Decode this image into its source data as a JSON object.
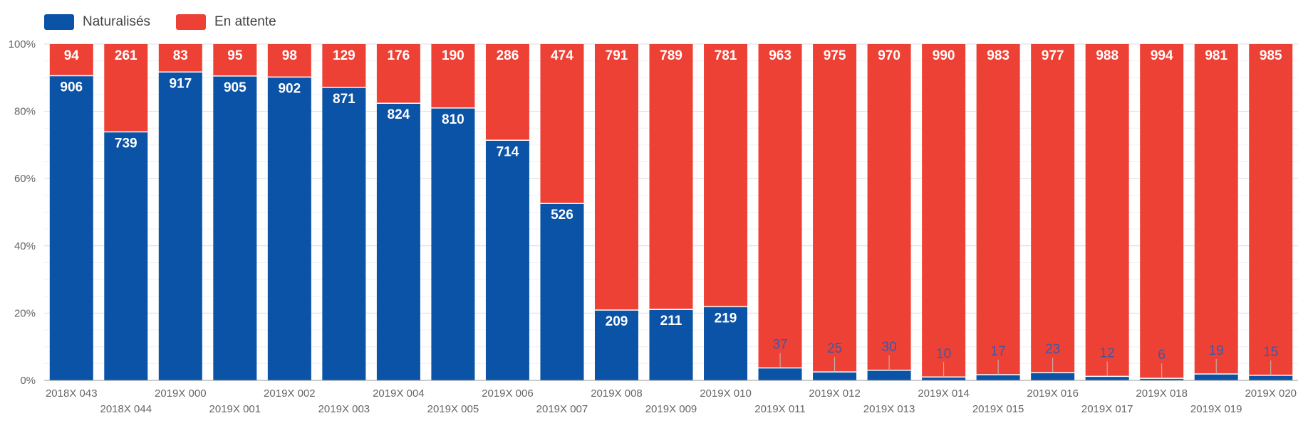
{
  "chart_data": {
    "type": "bar",
    "stacked": true,
    "normalized": true,
    "categories": [
      "2018X 043",
      "2018X 044",
      "2019X 000",
      "2019X 001",
      "2019X 002",
      "2019X 003",
      "2019X 004",
      "2019X 005",
      "2019X 006",
      "2019X 007",
      "2019X 008",
      "2019X 009",
      "2019X 010",
      "2019X 011",
      "2019X 012",
      "2019X 013",
      "2019X 014",
      "2019X 015",
      "2019X 016",
      "2019X 017",
      "2019X 018",
      "2019X 019",
      "2019X 020"
    ],
    "series": [
      {
        "name": "Naturalisés",
        "color": "#0a53a6",
        "values": [
          906,
          739,
          917,
          905,
          902,
          871,
          824,
          810,
          714,
          526,
          209,
          211,
          219,
          37,
          25,
          30,
          10,
          17,
          23,
          12,
          6,
          19,
          15
        ]
      },
      {
        "name": "En attente",
        "color": "#ee4136",
        "values": [
          94,
          261,
          83,
          95,
          98,
          129,
          176,
          190,
          286,
          474,
          791,
          789,
          781,
          963,
          975,
          970,
          990,
          983,
          977,
          988,
          994,
          981,
          985
        ]
      }
    ],
    "yticks": [
      "0%",
      "20%",
      "40%",
      "60%",
      "80%",
      "100%"
    ],
    "ylim": [
      0,
      100
    ],
    "legend": "top-left",
    "grid": true,
    "title": "",
    "xlabel": "",
    "ylabel": ""
  }
}
